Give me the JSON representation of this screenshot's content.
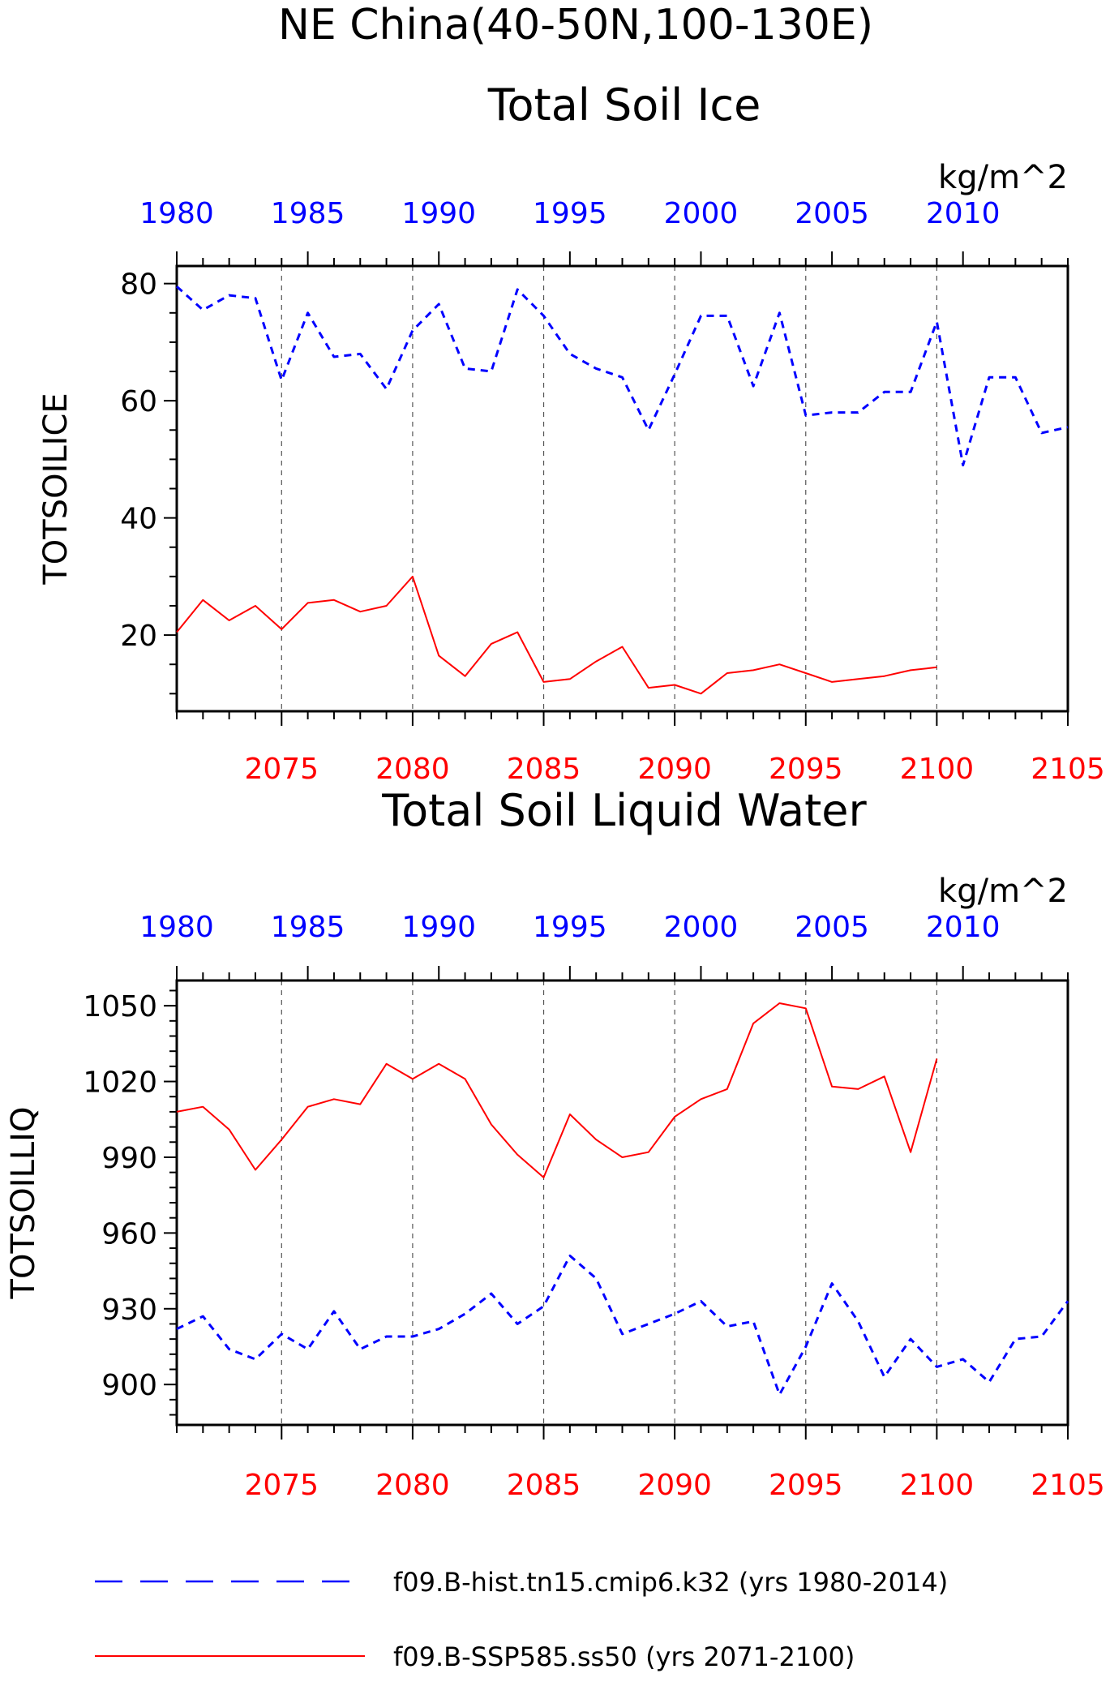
{
  "page": {
    "title_line1": "NE China(40-50N,100-130E)"
  },
  "legend": {
    "hist_label": "f09.B-hist.tn15.cmip6.k32 (yrs 1980-2014)",
    "ssp_label": "f09.B-SSP585.ss50 (yrs 2071-2100)"
  },
  "colors": {
    "hist": "#0000ff",
    "ssp": "#ff0000",
    "axis": "#000000",
    "grid": "#555555"
  },
  "chart_data": [
    {
      "type": "line",
      "title": "Total Soil Ice",
      "units": "kg/m^2",
      "ylabel": "TOTSOILICE",
      "ylim": [
        7,
        83
      ],
      "yticks": [
        20,
        40,
        60,
        80
      ],
      "yminor_step": 5,
      "top_axis": {
        "range": [
          1980,
          2014
        ],
        "ticks": [
          1980,
          1985,
          1990,
          1995,
          2000,
          2005,
          2010
        ]
      },
      "bottom_axis": {
        "range": [
          2071,
          2105
        ],
        "ticks": [
          2075,
          2080,
          2085,
          2090,
          2095,
          2100,
          2105
        ]
      },
      "gridlines_at_bottom_ticks": [
        2075,
        2080,
        2085,
        2090,
        2095,
        2100
      ],
      "series": [
        {
          "name": "f09.B-hist.tn15.cmip6.k32 (yrs 1980-2014)",
          "style": "dashed",
          "axis": "top",
          "x": [
            1980,
            1981,
            1982,
            1983,
            1984,
            1985,
            1986,
            1987,
            1988,
            1989,
            1990,
            1991,
            1992,
            1993,
            1994,
            1995,
            1996,
            1997,
            1998,
            1999,
            2000,
            2001,
            2002,
            2003,
            2004,
            2005,
            2006,
            2007,
            2008,
            2009,
            2010,
            2011,
            2012,
            2013,
            2014
          ],
          "values": [
            79.5,
            75.5,
            78,
            77.5,
            63.5,
            75,
            67.5,
            68,
            62,
            72,
            76.5,
            65.5,
            65,
            79,
            74.5,
            68,
            65.5,
            64,
            55,
            64.5,
            74.5,
            74.5,
            62.5,
            75,
            57.5,
            58,
            58,
            61.5,
            61.5,
            73.5,
            49,
            64,
            64,
            54.5,
            55.5
          ]
        },
        {
          "name": "f09.B-SSP585.ss50 (yrs 2071-2100)",
          "style": "solid",
          "axis": "bottom",
          "x": [
            2071,
            2072,
            2073,
            2074,
            2075,
            2076,
            2077,
            2078,
            2079,
            2080,
            2081,
            2082,
            2083,
            2084,
            2085,
            2086,
            2087,
            2088,
            2089,
            2090,
            2091,
            2092,
            2093,
            2094,
            2095,
            2096,
            2097,
            2098,
            2099,
            2100
          ],
          "values": [
            20.5,
            26,
            22.5,
            25,
            21,
            25.5,
            26,
            24,
            25,
            30,
            16.5,
            13,
            18.5,
            20.5,
            12,
            12.5,
            15.5,
            18,
            11,
            11.5,
            10,
            13.5,
            14,
            15,
            13.5,
            12,
            12.5,
            13,
            14,
            14.5
          ]
        }
      ]
    },
    {
      "type": "line",
      "title": "Total Soil Liquid Water",
      "units": "kg/m^2",
      "ylabel": "TOTSOILLIQ",
      "ylim": [
        884,
        1060
      ],
      "yticks": [
        900,
        930,
        960,
        990,
        1020,
        1050
      ],
      "yminor_step": 6,
      "top_axis": {
        "range": [
          1980,
          2014
        ],
        "ticks": [
          1980,
          1985,
          1990,
          1995,
          2000,
          2005,
          2010
        ]
      },
      "bottom_axis": {
        "range": [
          2071,
          2105
        ],
        "ticks": [
          2075,
          2080,
          2085,
          2090,
          2095,
          2100,
          2105
        ]
      },
      "gridlines_at_bottom_ticks": [
        2075,
        2080,
        2085,
        2090,
        2095,
        2100
      ],
      "series": [
        {
          "name": "f09.B-hist.tn15.cmip6.k32 (yrs 1980-2014)",
          "style": "dashed",
          "axis": "top",
          "x": [
            1980,
            1981,
            1982,
            1983,
            1984,
            1985,
            1986,
            1987,
            1988,
            1989,
            1990,
            1991,
            1992,
            1993,
            1994,
            1995,
            1996,
            1997,
            1998,
            1999,
            2000,
            2001,
            2002,
            2003,
            2004,
            2005,
            2006,
            2007,
            2008,
            2009,
            2010,
            2011,
            2012,
            2013,
            2014
          ],
          "values": [
            922,
            927,
            914,
            910,
            920,
            914,
            929,
            914,
            919,
            919,
            922,
            928,
            936,
            924,
            931,
            951,
            942,
            920,
            924,
            928,
            933,
            923,
            925,
            896,
            915,
            940,
            925,
            903,
            918,
            907,
            910,
            901,
            918,
            919,
            933
          ]
        },
        {
          "name": "f09.B-SSP585.ss50 (yrs 2071-2100)",
          "style": "solid",
          "axis": "bottom",
          "x": [
            2071,
            2072,
            2073,
            2074,
            2075,
            2076,
            2077,
            2078,
            2079,
            2080,
            2081,
            2082,
            2083,
            2084,
            2085,
            2086,
            2087,
            2088,
            2089,
            2090,
            2091,
            2092,
            2093,
            2094,
            2095,
            2096,
            2097,
            2098,
            2099,
            2100
          ],
          "values": [
            1008,
            1010,
            1001,
            985,
            997,
            1010,
            1013,
            1011,
            1027,
            1021,
            1027,
            1021,
            1003,
            991,
            982,
            1007,
            997,
            990,
            992,
            1006,
            1013,
            1017,
            1043,
            1051,
            1049,
            1018,
            1017,
            1022,
            992,
            1029
          ]
        }
      ]
    }
  ]
}
